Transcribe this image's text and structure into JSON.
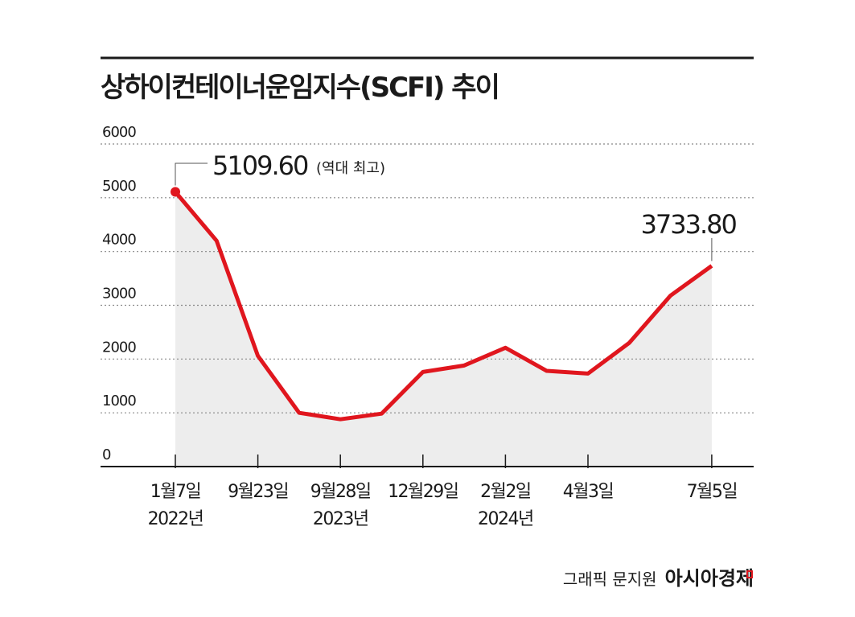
{
  "chart_data": {
    "type": "line",
    "title": "상하이컨테이너운임지수(SCFI) 추이",
    "categories": [
      "1월7일",
      null,
      "9월23일",
      null,
      "9월28일",
      null,
      "12월29일",
      null,
      "2월2일",
      null,
      "4월3일",
      null,
      null,
      "7월5일"
    ],
    "category_years": [
      "2022년",
      null,
      null,
      null,
      "2023년",
      null,
      null,
      null,
      "2024년",
      null,
      null,
      null,
      null,
      null
    ],
    "series": [
      {
        "name": "SCFI",
        "color": "#e0161e",
        "values": [
          5109.6,
          4200,
          2060,
          1000,
          880,
          985,
          1760,
          1880,
          2210,
          1780,
          1730,
          2300,
          3180,
          3733.8
        ],
        "value_labels": [
          "5109.60",
          null,
          null,
          null,
          null,
          null,
          null,
          null,
          null,
          null,
          null,
          null,
          null,
          "3733.80"
        ]
      }
    ],
    "annotation": "(역대 최고)",
    "ylim": [
      0,
      6000
    ],
    "yticks": [
      0,
      1000,
      2000,
      3000,
      4000,
      5000,
      6000
    ],
    "grid": true,
    "credit": "그래픽 문지원",
    "source": "아시아경제"
  }
}
